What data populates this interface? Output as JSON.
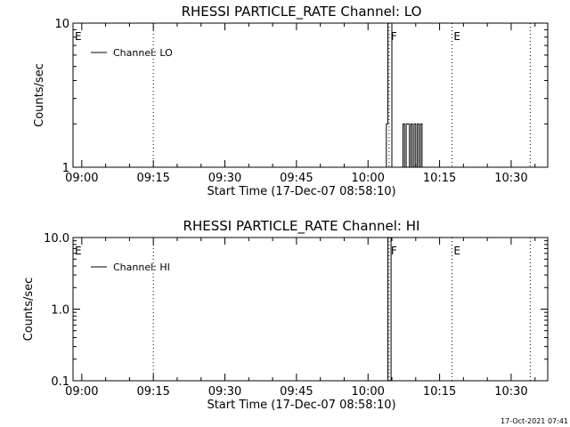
{
  "timestamp": "17-Oct-2021 07:41",
  "chart_data": [
    {
      "type": "line",
      "title": "RHESSI PARTICLE_RATE Channel: LO",
      "xlabel": "Start Time (17-Dec-07 08:58:10)",
      "ylabel": "Counts/sec",
      "yscale": "log",
      "xlim": [
        "08:58:10",
        "10:37:40"
      ],
      "ylim": [
        1,
        10
      ],
      "x_ticks": [
        "09:00",
        "09:15",
        "09:30",
        "09:45",
        "10:00",
        "10:15",
        "10:30"
      ],
      "y_ticks": [
        "1",
        "10"
      ],
      "legend": {
        "position": "top-left",
        "entries": [
          "Channel: LO"
        ]
      },
      "flag_lines": [
        {
          "time": "08:58:10",
          "label": "E"
        },
        {
          "time": "09:15:00",
          "label": ""
        },
        {
          "time": "10:04:25",
          "label": "F"
        },
        {
          "time": "10:17:35",
          "label": "E"
        },
        {
          "time": "10:34:00",
          "label": ""
        }
      ],
      "series": [
        {
          "name": "Channel: LO",
          "x": [
            "10:03:25",
            "10:03:50",
            "10:04:10",
            "10:04:40",
            "10:05:00",
            "10:07:00",
            "10:07:20",
            "10:07:40",
            "10:08:00",
            "10:08:20",
            "10:08:40",
            "10:09:00",
            "10:09:20",
            "10:09:40",
            "10:10:00",
            "10:10:20",
            "10:10:40",
            "10:11:00",
            "10:11:20",
            "10:11:40"
          ],
          "y": [
            1,
            2,
            10,
            10,
            1,
            1,
            2,
            1,
            2,
            2,
            1,
            2,
            1,
            2,
            1,
            2,
            1,
            2,
            1,
            1
          ]
        }
      ]
    },
    {
      "type": "line",
      "title": "RHESSI PARTICLE_RATE Channel: HI",
      "xlabel": "Start Time (17-Dec-07 08:58:10)",
      "ylabel": "Counts/sec",
      "yscale": "log",
      "xlim": [
        "08:58:10",
        "10:37:40"
      ],
      "ylim": [
        0.1,
        10
      ],
      "x_ticks": [
        "09:00",
        "09:15",
        "09:30",
        "09:45",
        "10:00",
        "10:15",
        "10:30"
      ],
      "y_ticks": [
        "10.0",
        "1.0",
        "0.1"
      ],
      "legend": {
        "position": "top-left",
        "entries": [
          "Channel: HI"
        ]
      },
      "flag_lines": [
        {
          "time": "08:58:10",
          "label": "E"
        },
        {
          "time": "09:15:00",
          "label": ""
        },
        {
          "time": "10:04:25",
          "label": "F"
        },
        {
          "time": "10:17:35",
          "label": "E"
        },
        {
          "time": "10:34:00",
          "label": ""
        }
      ],
      "series": [
        {
          "name": "Channel: HI",
          "x": [
            "10:04:00",
            "10:04:10",
            "10:04:40",
            "10:04:50"
          ],
          "y": [
            0.1,
            10,
            10,
            0.1
          ]
        }
      ]
    }
  ]
}
